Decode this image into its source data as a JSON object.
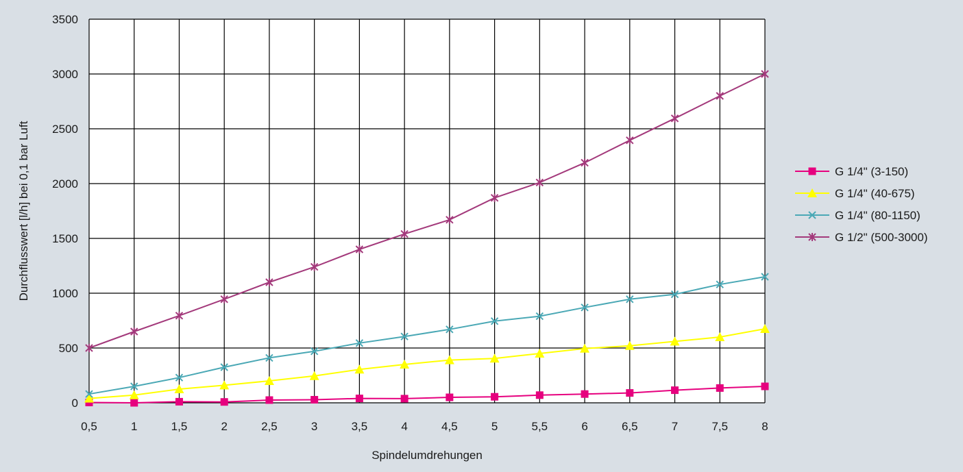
{
  "chart_data": {
    "type": "line",
    "title": "",
    "xlabel": "Spindelumdrehungen",
    "ylabel": "Durchflusswert [l/h] bei 0,1 bar Luft",
    "x": [
      "0,5",
      "1",
      "1,5",
      "2",
      "2,5",
      "3",
      "3,5",
      "4",
      "4,5",
      "5",
      "5,5",
      "6",
      "6,5",
      "7",
      "7,5",
      "8"
    ],
    "ylim": [
      0,
      3500
    ],
    "yticks": [
      "0",
      "500",
      "1000",
      "1500",
      "2000",
      "2500",
      "3000",
      "3500"
    ],
    "grid": true,
    "legend_position": "right",
    "series": [
      {
        "name": "G 1/4\" (3-150)",
        "color": "#e6007e",
        "marker": "square",
        "values": [
          3,
          0,
          10,
          8,
          25,
          28,
          40,
          38,
          50,
          55,
          70,
          80,
          90,
          115,
          135,
          150
        ]
      },
      {
        "name": "G 1/4\" (40-675)",
        "color": "#ffff00",
        "marker": "triangle",
        "values": [
          40,
          70,
          125,
          160,
          200,
          245,
          305,
          350,
          390,
          405,
          450,
          495,
          520,
          560,
          600,
          675
        ]
      },
      {
        "name": "G 1/4\" (80-1150)",
        "color": "#4aa8b5",
        "marker": "x",
        "values": [
          80,
          150,
          230,
          325,
          410,
          470,
          545,
          605,
          670,
          745,
          790,
          870,
          945,
          990,
          1080,
          1150
        ]
      },
      {
        "name": "G 1/2\" (500-3000)",
        "color": "#a3397b",
        "marker": "asterisk",
        "values": [
          500,
          650,
          795,
          945,
          1100,
          1240,
          1400,
          1540,
          1670,
          1870,
          2010,
          2190,
          2395,
          2595,
          2800,
          3000
        ]
      }
    ]
  }
}
